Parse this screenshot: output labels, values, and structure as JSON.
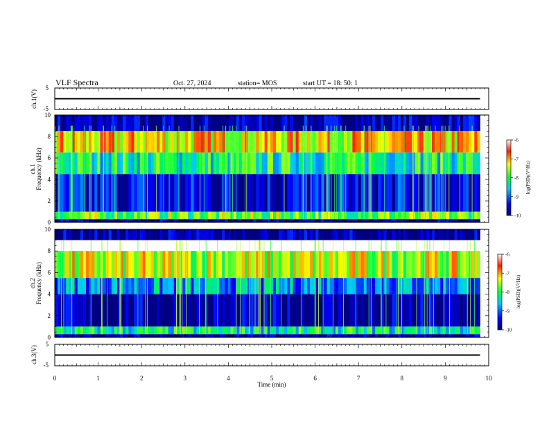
{
  "header": {
    "title": "VLF Spectra",
    "date": "Oct. 27, 2024",
    "station": "station= MOS",
    "start": "start  UT  =   18: 50: 1"
  },
  "chart_data": [
    {
      "type": "line",
      "name": "ch1-waveform",
      "ylabel": "ch.1(V)",
      "ylim": [
        -5,
        5
      ],
      "yticks": [
        "5",
        "-5"
      ],
      "xlim": [
        0,
        10
      ],
      "series": [
        {
          "values": [
            0,
            0
          ]
        }
      ],
      "x": [
        0,
        9.8
      ]
    },
    {
      "type": "heatmap",
      "name": "ch1-spectrogram",
      "ylabel": "ch.1\nFrequency (kHz)",
      "ylim": [
        0,
        10
      ],
      "yticks": [
        "0",
        "2",
        "4",
        "6",
        "8",
        "10"
      ],
      "xlim": [
        0,
        10
      ],
      "data_end_min": 9.8,
      "colorbar": {
        "label": "log(PSD)(V²/Hz)",
        "range": [
          -10,
          -6
        ],
        "ticks": [
          "-6",
          "-7",
          "-8",
          "-9",
          "-10"
        ]
      },
      "bands": [
        {
          "f_low": 8.5,
          "f_high": 10,
          "level": -9.8
        },
        {
          "f_low": 6.5,
          "f_high": 8.5,
          "level": -7.2
        },
        {
          "f_low": 4.5,
          "f_high": 6.5,
          "level": -8.2
        },
        {
          "f_low": 1.0,
          "f_high": 4.5,
          "level": -9.5
        },
        {
          "f_low": 0.3,
          "f_high": 1.0,
          "level": -7.8
        },
        {
          "f_low": 0,
          "f_high": 0.3,
          "level": -9.9
        }
      ]
    },
    {
      "type": "heatmap",
      "name": "ch2-spectrogram",
      "ylabel": "ch.2\nFrequency (kHz)",
      "ylim": [
        0,
        10
      ],
      "yticks": [
        "0",
        "2",
        "4",
        "6",
        "8",
        "10"
      ],
      "xlim": [
        0,
        10
      ],
      "data_end_min": 9.8,
      "colorbar": {
        "label": "log(PSD)(V²/Hz)",
        "range": [
          -10,
          -6
        ],
        "ticks": [
          "-6",
          "-7",
          "-8",
          "-9",
          "-10"
        ]
      },
      "bands": [
        {
          "f_low": 9.0,
          "f_high": 10,
          "level": -9.9
        },
        {
          "f_low": 5.5,
          "f_high": 8.0,
          "level": -7.5
        },
        {
          "f_low": 4.0,
          "f_high": 5.5,
          "level": -8.8
        },
        {
          "f_low": 1.0,
          "f_high": 4.0,
          "level": -9.9
        },
        {
          "f_low": 0.3,
          "f_high": 1.0,
          "level": -8.3
        },
        {
          "f_low": 0,
          "f_high": 0.3,
          "level": -9.9
        }
      ]
    },
    {
      "type": "line",
      "name": "ch3-waveform",
      "ylabel": "ch.3(V)",
      "ylim": [
        -5,
        5
      ],
      "yticks": [
        "5",
        "-5"
      ],
      "xlim": [
        0,
        10
      ],
      "xlabel": "Time  (min)",
      "xticks": [
        "0",
        "1",
        "2",
        "3",
        "4",
        "5",
        "6",
        "7",
        "8",
        "9",
        "10"
      ],
      "series": [
        {
          "values": [
            0,
            0
          ]
        }
      ],
      "x": [
        0,
        9.8
      ]
    }
  ]
}
